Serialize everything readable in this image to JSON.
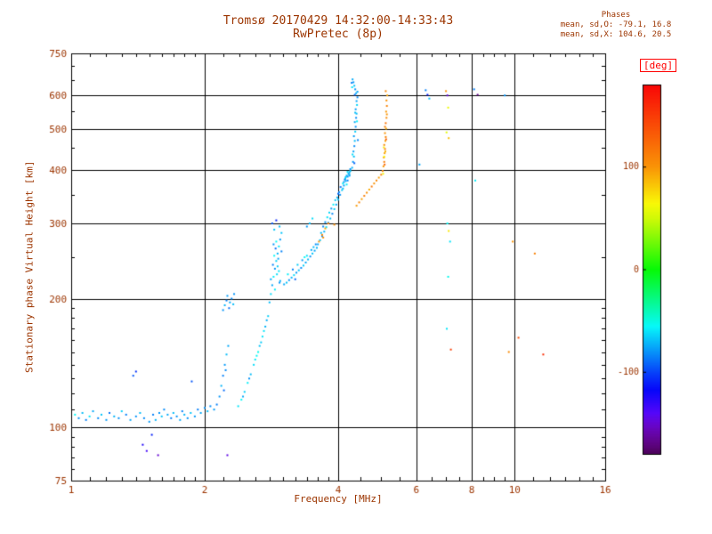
{
  "title": {
    "line1": "Tromsø 20170429 14:32:00-14:33:43",
    "line2": "RwPretec (8p)"
  },
  "stats": {
    "header": "Phases",
    "line_o": "mean, sd,O: -79.1, 16.8",
    "line_x": "mean, sd,X: 104.6, 20.5"
  },
  "colors": {
    "text": "#9c3500",
    "axis": "#000000",
    "deg_label": "#ff0000"
  },
  "chart_data": {
    "type": "scatter",
    "title": "Tromsø 20170429 14:32:00-14:33:43 — RwPretec (8p)",
    "xlabel": "Frequency [MHz]",
    "ylabel": "Stationary phase Virtual Height [km]",
    "xscale": "log",
    "yscale": "log",
    "xlim": [
      1,
      16
    ],
    "ylim": [
      75,
      750
    ],
    "x_ticks": [
      1,
      2,
      4,
      6,
      8,
      10,
      16
    ],
    "y_ticks": [
      750,
      600,
      500,
      400,
      300,
      200,
      100,
      75
    ],
    "x_gridlines": [
      2,
      4,
      6,
      8,
      10
    ],
    "y_gridlines": [
      100,
      200,
      300,
      400,
      500,
      600
    ],
    "x_minor_ticks": [
      1.1,
      1.2,
      1.3,
      1.4,
      1.5,
      1.6,
      1.7,
      1.8,
      1.9,
      2.2,
      2.4,
      2.6,
      2.8,
      3.0,
      3.2,
      3.4,
      3.6,
      3.8,
      4.5,
      5.0,
      5.5,
      6.5,
      7.0,
      7.5,
      8.5,
      9.0,
      9.5,
      11,
      12,
      13,
      14,
      15
    ],
    "y_minor_ticks": [
      80,
      85,
      90,
      95,
      110,
      120,
      130,
      140,
      150,
      160,
      170,
      180,
      190,
      250,
      350,
      450,
      550,
      650,
      700
    ],
    "colorbar": {
      "label": "[deg]",
      "min": -180,
      "max": 180,
      "ticks": [
        100,
        0,
        -100
      ]
    },
    "legend": "point color = stationary phase [deg]",
    "points": [
      [
        1.02,
        107,
        -55
      ],
      [
        1.04,
        105,
        -80
      ],
      [
        1.06,
        108,
        -70
      ],
      [
        1.08,
        104,
        -85
      ],
      [
        1.1,
        106,
        -60
      ],
      [
        1.12,
        109,
        -75
      ],
      [
        1.15,
        105,
        -82
      ],
      [
        1.17,
        107,
        -68
      ],
      [
        1.2,
        104,
        -78
      ],
      [
        1.22,
        108,
        -88
      ],
      [
        1.25,
        106,
        -72
      ],
      [
        1.28,
        105,
        -80
      ],
      [
        1.3,
        109,
        -65
      ],
      [
        1.33,
        107,
        -85
      ],
      [
        1.36,
        104,
        -75
      ],
      [
        1.38,
        132,
        -95
      ],
      [
        1.4,
        135,
        -105
      ],
      [
        1.4,
        106,
        -80
      ],
      [
        1.43,
        108,
        -70
      ],
      [
        1.45,
        91,
        -125
      ],
      [
        1.46,
        105,
        -82
      ],
      [
        1.48,
        88,
        -135
      ],
      [
        1.5,
        103,
        -78
      ],
      [
        1.52,
        96,
        -110
      ],
      [
        1.53,
        107,
        -85
      ],
      [
        1.55,
        104,
        -72
      ],
      [
        1.57,
        86,
        -150
      ],
      [
        1.58,
        108,
        -80
      ],
      [
        1.6,
        106,
        -68
      ],
      [
        1.62,
        110,
        -82
      ],
      [
        1.65,
        107,
        -75
      ],
      [
        1.68,
        105,
        -85
      ],
      [
        1.7,
        108,
        -70
      ],
      [
        1.73,
        106,
        -80
      ],
      [
        1.76,
        104,
        -75
      ],
      [
        1.78,
        109,
        -85
      ],
      [
        1.8,
        107,
        -72
      ],
      [
        1.83,
        105,
        -80
      ],
      [
        1.86,
        108,
        -68
      ],
      [
        1.87,
        128,
        -95
      ],
      [
        1.9,
        106,
        -78
      ],
      [
        1.93,
        110,
        -85
      ],
      [
        1.96,
        108,
        -75
      ],
      [
        2.0,
        111,
        -80
      ],
      [
        2.03,
        109,
        -70
      ],
      [
        2.06,
        112,
        -82
      ],
      [
        2.1,
        110,
        -78
      ],
      [
        2.13,
        113,
        -85
      ],
      [
        2.16,
        118,
        -80
      ],
      [
        2.18,
        125,
        -72
      ],
      [
        2.2,
        132,
        -85
      ],
      [
        2.22,
        140,
        -78
      ],
      [
        2.24,
        148,
        -70
      ],
      [
        2.21,
        122,
        -90
      ],
      [
        2.23,
        136,
        -82
      ],
      [
        2.26,
        155,
        -75
      ],
      [
        2.2,
        188,
        -80
      ],
      [
        2.22,
        193,
        -72
      ],
      [
        2.24,
        198,
        -85
      ],
      [
        2.25,
        203,
        -78
      ],
      [
        2.27,
        190,
        -88
      ],
      [
        2.28,
        196,
        -75
      ],
      [
        2.3,
        200,
        -82
      ],
      [
        2.32,
        194,
        -70
      ],
      [
        2.33,
        205,
        -80
      ],
      [
        2.25,
        86,
        -145
      ],
      [
        2.38,
        112,
        -60
      ],
      [
        2.42,
        116,
        -55
      ],
      [
        2.46,
        121,
        -65
      ],
      [
        2.5,
        127,
        -58
      ],
      [
        2.54,
        133,
        -70
      ],
      [
        2.58,
        140,
        -62
      ],
      [
        2.62,
        147,
        -55
      ],
      [
        2.66,
        155,
        -68
      ],
      [
        2.7,
        163,
        -60
      ],
      [
        2.74,
        172,
        -72
      ],
      [
        2.78,
        182,
        -65
      ],
      [
        2.44,
        118,
        -75
      ],
      [
        2.52,
        130,
        -80
      ],
      [
        2.6,
        144,
        -58
      ],
      [
        2.68,
        158,
        -66
      ],
      [
        2.76,
        178,
        -74
      ],
      [
        2.64,
        150,
        -52
      ],
      [
        2.72,
        168,
        -60
      ],
      [
        2.8,
        196,
        -70
      ],
      [
        2.82,
        205,
        -62
      ],
      [
        2.84,
        215,
        -75
      ],
      [
        2.86,
        225,
        -58
      ],
      [
        2.88,
        235,
        -80
      ],
      [
        2.9,
        245,
        -65
      ],
      [
        2.92,
        255,
        -72
      ],
      [
        2.94,
        265,
        -60
      ],
      [
        2.96,
        275,
        -78
      ],
      [
        2.98,
        285,
        -68
      ],
      [
        2.85,
        240,
        -85
      ],
      [
        2.87,
        252,
        -55
      ],
      [
        2.89,
        262,
        -90
      ],
      [
        2.91,
        228,
        -62
      ],
      [
        2.93,
        248,
        -75
      ],
      [
        2.95,
        295,
        -70
      ],
      [
        2.9,
        305,
        -110
      ],
      [
        2.88,
        210,
        -58
      ],
      [
        2.86,
        268,
        -80
      ],
      [
        2.92,
        238,
        -66
      ],
      [
        2.84,
        300,
        -95
      ],
      [
        2.96,
        220,
        -72
      ],
      [
        2.94,
        232,
        -60
      ],
      [
        2.98,
        258,
        -84
      ],
      [
        2.82,
        222,
        -76
      ],
      [
        2.9,
        272,
        -55
      ],
      [
        2.87,
        290,
        -68
      ],
      [
        2.95,
        218,
        -80
      ],
      [
        3.02,
        216,
        -75
      ],
      [
        3.06,
        218,
        -68
      ],
      [
        3.1,
        221,
        -80
      ],
      [
        3.14,
        224,
        -72
      ],
      [
        3.18,
        227,
        -62
      ],
      [
        3.22,
        230,
        -78
      ],
      [
        3.26,
        233,
        -70
      ],
      [
        3.3,
        236,
        -82
      ],
      [
        3.34,
        239,
        -65
      ],
      [
        3.38,
        243,
        -75
      ],
      [
        3.42,
        247,
        -70
      ],
      [
        3.46,
        251,
        -80
      ],
      [
        3.5,
        255,
        -68
      ],
      [
        3.54,
        259,
        -76
      ],
      [
        3.58,
        263,
        -72
      ],
      [
        3.08,
        228,
        -58
      ],
      [
        3.16,
        234,
        -84
      ],
      [
        3.24,
        240,
        -66
      ],
      [
        3.32,
        246,
        -78
      ],
      [
        3.4,
        252,
        -60
      ],
      [
        3.48,
        260,
        -74
      ],
      [
        3.56,
        268,
        -82
      ],
      [
        3.2,
        222,
        -90
      ],
      [
        3.36,
        250,
        -55
      ],
      [
        3.52,
        264,
        -70
      ],
      [
        3.45,
        300,
        -70
      ],
      [
        3.5,
        308,
        -62
      ],
      [
        3.4,
        295,
        -78
      ],
      [
        3.6,
        268,
        -75
      ],
      [
        3.64,
        274,
        -68
      ],
      [
        3.68,
        280,
        -80
      ],
      [
        3.72,
        287,
        -72
      ],
      [
        3.76,
        294,
        -62
      ],
      [
        3.8,
        301,
        -78
      ],
      [
        3.84,
        308,
        -70
      ],
      [
        3.88,
        316,
        -82
      ],
      [
        3.92,
        324,
        -65
      ],
      [
        3.96,
        332,
        -75
      ],
      [
        4.0,
        341,
        -70
      ],
      [
        4.04,
        350,
        -80
      ],
      [
        4.08,
        359,
        -68
      ],
      [
        4.12,
        368,
        -76
      ],
      [
        4.16,
        377,
        -72
      ],
      [
        4.2,
        386,
        -80
      ],
      [
        4.24,
        395,
        -74
      ],
      [
        3.7,
        295,
        -85
      ],
      [
        3.78,
        310,
        -60
      ],
      [
        3.86,
        325,
        -78
      ],
      [
        3.94,
        340,
        -66
      ],
      [
        4.02,
        355,
        -82
      ],
      [
        4.1,
        372,
        -58
      ],
      [
        4.18,
        388,
        -74
      ],
      [
        4.26,
        398,
        -68
      ],
      [
        4.05,
        365,
        -88
      ],
      [
        4.15,
        382,
        -62
      ],
      [
        3.9,
        332,
        -55
      ],
      [
        4.0,
        352,
        -90
      ],
      [
        4.22,
        392,
        -76
      ],
      [
        3.66,
        285,
        -70
      ],
      [
        3.74,
        302,
        -80
      ],
      [
        3.82,
        318,
        -64
      ],
      [
        3.98,
        345,
        -72
      ],
      [
        4.14,
        380,
        -84
      ],
      [
        4.1,
        362,
        -70
      ],
      [
        4.2,
        396,
        -60
      ],
      [
        4.24,
        388,
        -78
      ],
      [
        4.12,
        375,
        -78
      ],
      [
        4.16,
        385,
        -66
      ],
      [
        4.2,
        378,
        -84
      ],
      [
        4.24,
        390,
        -72
      ],
      [
        4.18,
        370,
        -58
      ],
      [
        4.26,
        402,
        -80
      ],
      [
        3.62,
        272,
        100
      ],
      [
        3.68,
        282,
        108
      ],
      [
        3.74,
        292,
        95
      ],
      [
        3.8,
        300,
        112
      ],
      [
        3.7,
        278,
        104
      ],
      [
        3.92,
        298,
        102
      ],
      [
        4.3,
        405,
        -72
      ],
      [
        4.32,
        418,
        -80
      ],
      [
        4.34,
        430,
        -68
      ],
      [
        4.33,
        442,
        -76
      ],
      [
        4.35,
        455,
        -82
      ],
      [
        4.36,
        468,
        -70
      ],
      [
        4.34,
        480,
        -78
      ],
      [
        4.37,
        492,
        -66
      ],
      [
        4.38,
        505,
        -80
      ],
      [
        4.36,
        518,
        -74
      ],
      [
        4.39,
        530,
        -82
      ],
      [
        4.4,
        542,
        -70
      ],
      [
        4.38,
        555,
        -78
      ],
      [
        4.41,
        568,
        -64
      ],
      [
        4.4,
        580,
        -76
      ],
      [
        4.42,
        592,
        -82
      ],
      [
        4.39,
        605,
        -72
      ],
      [
        4.37,
        618,
        -80
      ],
      [
        4.35,
        630,
        -68
      ],
      [
        4.33,
        642,
        -78
      ],
      [
        4.31,
        652,
        -74
      ],
      [
        4.29,
        640,
        -85
      ],
      [
        4.3,
        625,
        -60
      ],
      [
        4.36,
        600,
        -90
      ],
      [
        4.41,
        520,
        -58
      ],
      [
        4.43,
        470,
        -84
      ],
      [
        4.35,
        415,
        -92
      ],
      [
        4.31,
        435,
        -62
      ],
      [
        4.37,
        545,
        -70
      ],
      [
        4.42,
        610,
        -76
      ],
      [
        4.4,
        330,
        98
      ],
      [
        4.46,
        336,
        108
      ],
      [
        4.52,
        342,
        95
      ],
      [
        4.58,
        348,
        112
      ],
      [
        4.64,
        354,
        102
      ],
      [
        4.7,
        360,
        92
      ],
      [
        4.76,
        366,
        115
      ],
      [
        4.82,
        372,
        100
      ],
      [
        4.88,
        378,
        108
      ],
      [
        4.94,
        384,
        96
      ],
      [
        5.0,
        390,
        110
      ],
      [
        5.04,
        398,
        105
      ],
      [
        5.06,
        408,
        98
      ],
      [
        5.08,
        418,
        112
      ],
      [
        5.07,
        428,
        102
      ],
      [
        5.09,
        438,
        95
      ],
      [
        5.1,
        448,
        115
      ],
      [
        5.08,
        458,
        104
      ],
      [
        5.11,
        468,
        96
      ],
      [
        5.12,
        478,
        108
      ],
      [
        5.1,
        488,
        100
      ],
      [
        5.13,
        500,
        92
      ],
      [
        5.12,
        515,
        118
      ],
      [
        5.14,
        530,
        104
      ],
      [
        5.13,
        548,
        98
      ],
      [
        5.15,
        565,
        110
      ],
      [
        5.14,
        582,
        102
      ],
      [
        5.16,
        598,
        95
      ],
      [
        5.12,
        612,
        108
      ],
      [
        5.09,
        412,
        124
      ],
      [
        5.11,
        442,
        88
      ],
      [
        5.13,
        472,
        130
      ],
      [
        5.07,
        452,
        70
      ],
      [
        5.1,
        505,
        112
      ],
      [
        5.15,
        540,
        100
      ],
      [
        5.05,
        392,
        60
      ],
      [
        5.08,
        430,
        65
      ],
      [
        6.1,
        412,
        -75
      ],
      [
        6.3,
        615,
        -85
      ],
      [
        6.36,
        600,
        -110
      ],
      [
        6.42,
        588,
        -70
      ],
      [
        7.0,
        612,
        100
      ],
      [
        7.05,
        598,
        -150
      ],
      [
        7.08,
        560,
        60
      ],
      [
        7.02,
        490,
        55
      ],
      [
        7.1,
        475,
        85
      ],
      [
        7.05,
        300,
        -55
      ],
      [
        7.1,
        288,
        70
      ],
      [
        7.15,
        272,
        -60
      ],
      [
        7.08,
        225,
        -52
      ],
      [
        7.03,
        170,
        -60
      ],
      [
        7.18,
        152,
        148
      ],
      [
        8.1,
        618,
        -85
      ],
      [
        8.25,
        600,
        -168
      ],
      [
        8.15,
        378,
        -58
      ],
      [
        9.5,
        598,
        -80
      ],
      [
        9.9,
        272,
        100
      ],
      [
        9.7,
        150,
        105
      ],
      [
        11.1,
        255,
        110
      ],
      [
        11.6,
        148,
        158
      ],
      [
        10.2,
        162,
        140
      ]
    ]
  }
}
